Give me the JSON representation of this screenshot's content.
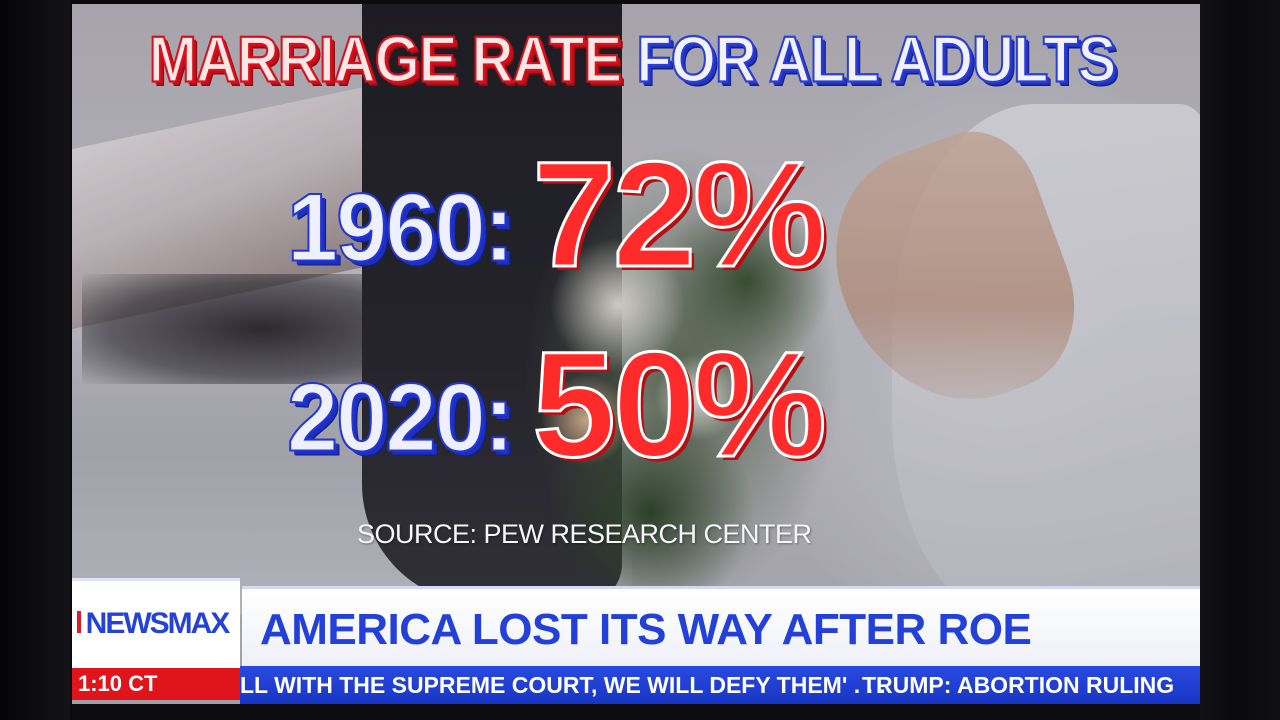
{
  "headline": {
    "part_red": "MARRIAGE RATE",
    "part_blue": "FOR ALL ADULTS"
  },
  "stats": [
    {
      "year": "1960:",
      "value": "72%"
    },
    {
      "year": "2020:",
      "value": "50%"
    }
  ],
  "source": "SOURCE:  PEW RESEARCH CENTER",
  "lower_third": {
    "logo": "NEWSMAX",
    "clock": "1:10 CT",
    "title": "AMERICA LOST ITS WAY AFTER ROE",
    "ticker": [
      "LL WITH THE SUPREME COURT, WE WILL DEFY THEM' . . .",
      "TRUMP: ABORTION RULING"
    ]
  },
  "colors": {
    "headline_red": "#d8121c",
    "headline_blue": "#2b3fd6",
    "stat_red": "#ff2a2a",
    "brand_blue": "#2443d6",
    "clock_red": "#e0141b",
    "ticker_blue": "#1836c4"
  }
}
